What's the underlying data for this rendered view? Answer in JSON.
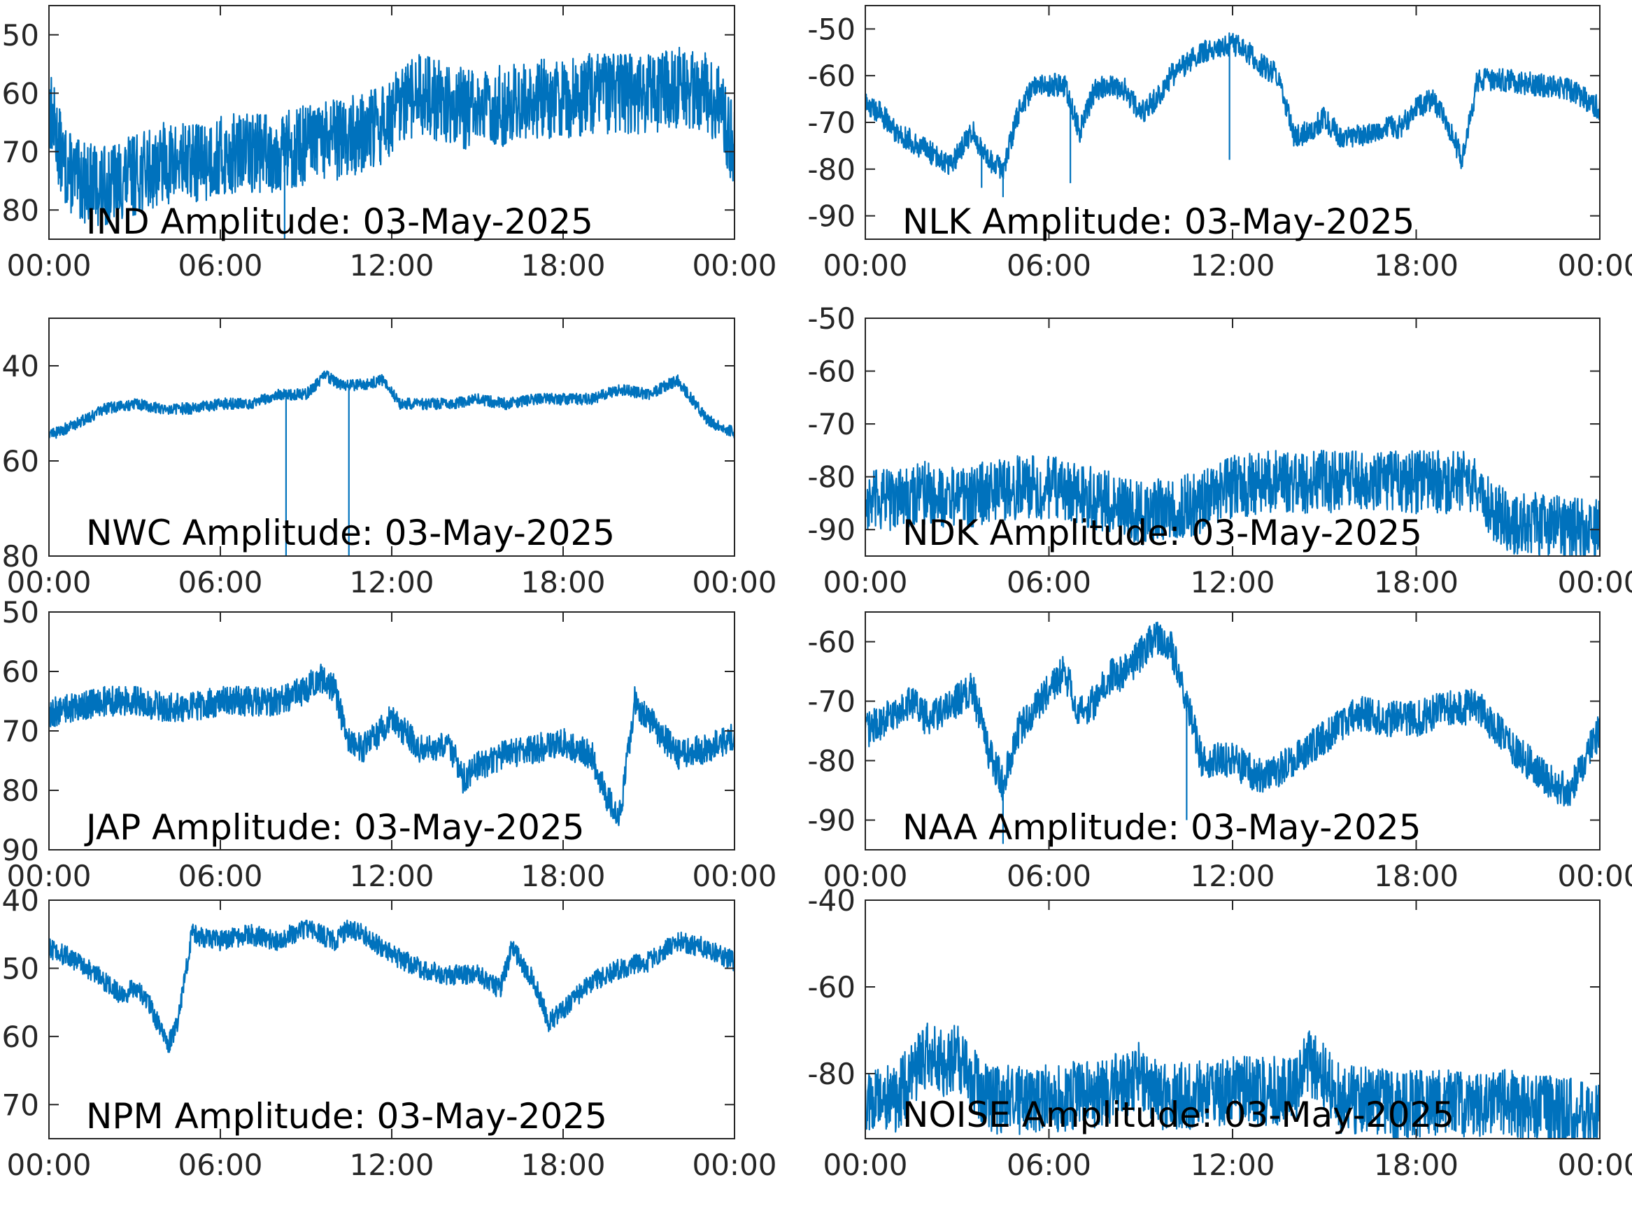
{
  "figure": {
    "line_color": "#0072BD",
    "axis_color": "#262626",
    "background": "#ffffff"
  },
  "chart_data": [
    {
      "type": "line",
      "id": "ind",
      "title": "IND Amplitude: 03-May-2025",
      "xlabel": "",
      "ylabel": "",
      "xlim": [
        0,
        24
      ],
      "ylim": [
        -85,
        -45
      ],
      "xticks": [
        "00:00",
        "06:00",
        "12:00",
        "18:00",
        "00:00"
      ],
      "yticks": [
        -50,
        -60,
        -70,
        -80
      ],
      "ytick_labels": [
        "50",
        "60",
        "70",
        "80"
      ],
      "grid": false,
      "noise": 7,
      "spikes": [
        [
          8.25,
          -85
        ]
      ],
      "series": [
        {
          "x": [
            0,
            0.5,
            1,
            2,
            3,
            4,
            5,
            6,
            7,
            8,
            9,
            10,
            11,
            11.5,
            12,
            13,
            14,
            15,
            16,
            17,
            18,
            19,
            20,
            21,
            22,
            22.5,
            23,
            23.5,
            24
          ],
          "y": [
            -62,
            -72,
            -75,
            -76,
            -74,
            -72,
            -72,
            -71,
            -70,
            -70,
            -69,
            -68,
            -67,
            -66,
            -64,
            -60,
            -62,
            -63,
            -62,
            -61,
            -61,
            -60,
            -60,
            -60,
            -59,
            -59,
            -60,
            -62,
            -70
          ]
        }
      ]
    },
    {
      "type": "line",
      "id": "nlk",
      "title": "NLK Amplitude: 03-May-2025",
      "xlabel": "",
      "ylabel": "",
      "xlim": [
        0,
        24
      ],
      "ylim": [
        -95,
        -45
      ],
      "xticks": [
        "00:00",
        "06:00",
        "12:00",
        "18:00",
        "00:00"
      ],
      "yticks": [
        -50,
        -60,
        -70,
        -80,
        -90
      ],
      "ytick_labels": [
        "-50",
        "-60",
        "-70",
        "-80",
        "-90"
      ],
      "grid": false,
      "noise": 2.5,
      "spikes": [
        [
          3.8,
          -84
        ],
        [
          4.5,
          -86
        ],
        [
          6.7,
          -83
        ],
        [
          11.9,
          -78
        ]
      ],
      "series": [
        {
          "x": [
            0,
            0.5,
            1,
            2,
            2.8,
            3.5,
            4,
            4.5,
            5,
            5.5,
            6,
            6.5,
            7,
            7.5,
            8,
            8.5,
            9,
            9.5,
            10,
            11,
            11.5,
            12,
            12.5,
            13,
            13.5,
            14,
            14.5,
            15,
            15.5,
            16,
            16.5,
            17,
            17.5,
            18,
            18.5,
            19,
            19.5,
            20,
            21,
            22,
            23,
            24
          ],
          "y": [
            -66,
            -68,
            -72,
            -76,
            -79,
            -72,
            -78,
            -80,
            -68,
            -62,
            -62,
            -62,
            -72,
            -63,
            -62,
            -63,
            -68,
            -65,
            -60,
            -55,
            -54,
            -53,
            -55,
            -58,
            -60,
            -73,
            -72,
            -69,
            -73,
            -73,
            -72,
            -71,
            -71,
            -67,
            -65,
            -70,
            -78,
            -61,
            -61,
            -62,
            -63,
            -67
          ]
        }
      ]
    },
    {
      "type": "line",
      "id": "nwc",
      "title": "NWC Amplitude: 03-May-2025",
      "xlabel": "",
      "ylabel": "",
      "xlim": [
        0,
        24
      ],
      "ylim": [
        -80,
        -30
      ],
      "xticks": [
        "00:00",
        "06:00",
        "12:00",
        "18:00",
        "00:00"
      ],
      "yticks": [
        -40,
        -60,
        -80
      ],
      "ytick_labels": [
        "40",
        "60",
        "80"
      ],
      "grid": false,
      "noise": 1.2,
      "spikes": [
        [
          8.3,
          -80
        ],
        [
          10.5,
          -80
        ]
      ],
      "series": [
        {
          "x": [
            0,
            0.3,
            1,
            2,
            3,
            4,
            5,
            6,
            7,
            8,
            9,
            9.7,
            10.2,
            11,
            11.7,
            12.3,
            13,
            14,
            15,
            16,
            17,
            18,
            19,
            20,
            21,
            22,
            22.5,
            23,
            23.5,
            24
          ],
          "y": [
            -54,
            -54,
            -52,
            -49,
            -48,
            -49,
            -49,
            -48,
            -48,
            -46,
            -46,
            -42,
            -44,
            -44,
            -43,
            -48,
            -48,
            -48,
            -47,
            -48,
            -47,
            -47,
            -47,
            -45,
            -46,
            -43,
            -47,
            -51,
            -53,
            -54
          ]
        }
      ]
    },
    {
      "type": "line",
      "id": "ndk",
      "title": "NDK Amplitude: 03-May-2025",
      "xlabel": "",
      "ylabel": "",
      "xlim": [
        0,
        24
      ],
      "ylim": [
        -95,
        -50
      ],
      "xticks": [
        "00:00",
        "06:00",
        "12:00",
        "18:00",
        "00:00"
      ],
      "yticks": [
        -50,
        -60,
        -70,
        -80,
        -90
      ],
      "ytick_labels": [
        "-50",
        "-60",
        "-70",
        "-80",
        "-90"
      ],
      "grid": false,
      "noise": 6,
      "spikes": [],
      "series": [
        {
          "x": [
            0,
            1,
            2,
            3,
            4,
            5,
            6,
            7,
            8,
            9,
            10,
            11,
            12,
            13,
            14,
            15,
            16,
            17,
            18,
            19,
            20,
            20.5,
            21,
            22,
            23,
            24
          ],
          "y": [
            -85,
            -84,
            -83,
            -84,
            -83,
            -82,
            -82,
            -83,
            -85,
            -87,
            -86,
            -85,
            -82,
            -81,
            -81,
            -81,
            -81,
            -81,
            -81,
            -81,
            -81,
            -86,
            -89,
            -89,
            -90,
            -90
          ]
        }
      ]
    },
    {
      "type": "line",
      "id": "jap",
      "title": "JAP Amplitude: 03-May-2025",
      "xlabel": "",
      "ylabel": "",
      "xlim": [
        0,
        24
      ],
      "ylim": [
        -90,
        -50
      ],
      "xticks": [
        "00:00",
        "06:00",
        "12:00",
        "18:00",
        "00:00"
      ],
      "yticks": [
        -50,
        -60,
        -70,
        -80,
        -90
      ],
      "ytick_labels": [
        "50",
        "60",
        "70",
        "80",
        "90"
      ],
      "grid": false,
      "noise": 2.5,
      "spikes": [],
      "series": [
        {
          "x": [
            0,
            1,
            2,
            3,
            4,
            5,
            6,
            7,
            8,
            9,
            9.5,
            10,
            10.5,
            11,
            12,
            13,
            14,
            14.5,
            15,
            16,
            17,
            18,
            19,
            19.5,
            20,
            20.5,
            21,
            22,
            23,
            24
          ],
          "y": [
            -67,
            -66,
            -65,
            -65,
            -66,
            -66,
            -65,
            -65,
            -65,
            -63,
            -61,
            -63,
            -72,
            -73,
            -68,
            -73,
            -72,
            -78,
            -76,
            -74,
            -73,
            -72,
            -74,
            -81,
            -84,
            -65,
            -68,
            -74,
            -73,
            -71
          ]
        }
      ]
    },
    {
      "type": "line",
      "id": "naa",
      "title": "NAA Amplitude: 03-May-2025",
      "xlabel": "",
      "ylabel": "",
      "xlim": [
        0,
        24
      ],
      "ylim": [
        -95,
        -55
      ],
      "xticks": [
        "00:00",
        "06:00",
        "12:00",
        "18:00",
        "00:00"
      ],
      "yticks": [
        -60,
        -70,
        -80,
        -90
      ],
      "ytick_labels": [
        "-60",
        "-70",
        "-80",
        "-90"
      ],
      "grid": false,
      "noise": 3,
      "spikes": [
        [
          4.5,
          -94
        ],
        [
          10.5,
          -90
        ]
      ],
      "series": [
        {
          "x": [
            0,
            1,
            1.5,
            2,
            3,
            3.5,
            4,
            4.5,
            5,
            5.5,
            6,
            6.5,
            7,
            7.5,
            8,
            8.5,
            9,
            9.5,
            10,
            10.5,
            11,
            12,
            13,
            14,
            15,
            16,
            17,
            18,
            19,
            20,
            21,
            22,
            22.5,
            23,
            23.5,
            24
          ],
          "y": [
            -75,
            -72,
            -70,
            -73,
            -70,
            -68,
            -78,
            -84,
            -75,
            -72,
            -68,
            -65,
            -72,
            -70,
            -66,
            -65,
            -62,
            -59,
            -61,
            -70,
            -80,
            -80,
            -83,
            -80,
            -76,
            -72,
            -73,
            -73,
            -71,
            -71,
            -77,
            -82,
            -84,
            -85,
            -80,
            -75
          ]
        }
      ]
    },
    {
      "type": "line",
      "id": "npm",
      "title": "NPM Amplitude: 03-May-2025",
      "xlabel": "",
      "ylabel": "",
      "xlim": [
        0,
        24
      ],
      "ylim": [
        -75,
        -40
      ],
      "xticks": [
        "00:00",
        "06:00",
        "12:00",
        "18:00",
        "00:00"
      ],
      "yticks": [
        -40,
        -50,
        -60,
        -70
      ],
      "ytick_labels": [
        "40",
        "50",
        "60",
        "70"
      ],
      "grid": false,
      "noise": 1.5,
      "spikes": [],
      "series": [
        {
          "x": [
            0,
            1,
            2,
            2.5,
            3,
            3.5,
            4,
            4.2,
            4.5,
            5,
            6,
            7,
            8,
            9,
            10,
            10.5,
            11,
            12,
            13,
            14,
            15,
            15.8,
            16.2,
            17,
            17.5,
            18,
            19,
            20,
            21,
            22,
            23,
            24
          ],
          "y": [
            -47,
            -49,
            -52,
            -54,
            -53,
            -55,
            -60,
            -61,
            -58,
            -45,
            -46,
            -45,
            -46,
            -44,
            -46,
            -44,
            -45,
            -48,
            -50,
            -51,
            -51,
            -53,
            -47,
            -52,
            -58,
            -56,
            -52,
            -50,
            -49,
            -46,
            -47,
            -49
          ]
        }
      ]
    },
    {
      "type": "line",
      "id": "noise",
      "title": "NOISE Amplitude: 03-May-2025",
      "xlabel": "",
      "ylabel": "",
      "xlim": [
        0,
        24
      ],
      "ylim": [
        -95,
        -40
      ],
      "xticks": [
        "00:00",
        "06:00",
        "12:00",
        "18:00",
        "00:00"
      ],
      "yticks": [
        -40,
        -60,
        -80
      ],
      "ytick_labels": [
        "-40",
        "-60",
        "-80"
      ],
      "grid": false,
      "noise": 8,
      "spikes": [],
      "series": [
        {
          "x": [
            0,
            1,
            1.5,
            2,
            2.5,
            3,
            3.5,
            4,
            5,
            6,
            7,
            8,
            9,
            9.5,
            10,
            11,
            12,
            13,
            14,
            14.5,
            15,
            15.5,
            16,
            17,
            18,
            19,
            20,
            21,
            22,
            23,
            24
          ],
          "y": [
            -86,
            -86,
            -80,
            -75,
            -78,
            -76,
            -80,
            -86,
            -86,
            -86,
            -85,
            -84,
            -80,
            -85,
            -85,
            -85,
            -84,
            -84,
            -84,
            -78,
            -80,
            -86,
            -86,
            -87,
            -87,
            -87,
            -87,
            -87,
            -88,
            -89,
            -90
          ]
        }
      ]
    }
  ]
}
